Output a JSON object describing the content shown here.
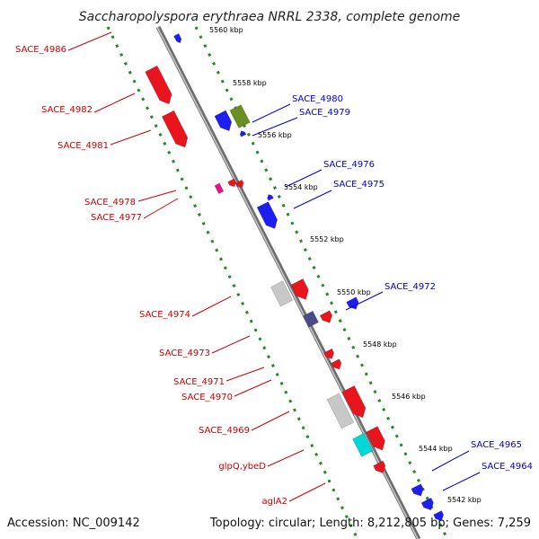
{
  "title": "Saccharopolyspora erythraea NRRL 2338, complete genome",
  "footer": {
    "accession": "Accession: NC_009142",
    "topology": "Topology: circular; Length: 8,212,805 bp; Genes: 7,259"
  },
  "colors": {
    "forward_label": "#0000cc",
    "reverse_label": "#cc0000",
    "backbone": "#888888",
    "dotted_track": "#228b22"
  },
  "kbp_ticks": [
    "5560 kbp",
    "5558 kbp",
    "5556 kbp",
    "5554 kbp",
    "5552 kbp",
    "5550 kbp",
    "5548 kbp",
    "5546 kbp",
    "5544 kbp",
    "5542 kbp"
  ],
  "gene_labels": [
    {
      "text": "SACE_4986",
      "strand": "reverse"
    },
    {
      "text": "SACE_4982",
      "strand": "reverse"
    },
    {
      "text": "SACE_4981",
      "strand": "reverse"
    },
    {
      "text": "SACE_4978",
      "strand": "reverse"
    },
    {
      "text": "SACE_4977",
      "strand": "reverse"
    },
    {
      "text": "SACE_4974",
      "strand": "reverse"
    },
    {
      "text": "SACE_4973",
      "strand": "reverse"
    },
    {
      "text": "SACE_4971",
      "strand": "reverse"
    },
    {
      "text": "SACE_4970",
      "strand": "reverse"
    },
    {
      "text": "SACE_4969",
      "strand": "reverse"
    },
    {
      "text": "glpQ,ybeD",
      "strand": "reverse"
    },
    {
      "text": "aglA2",
      "strand": "reverse"
    },
    {
      "text": "SACE_4980",
      "strand": "forward"
    },
    {
      "text": "SACE_4979",
      "strand": "forward"
    },
    {
      "text": "SACE_4976",
      "strand": "forward"
    },
    {
      "text": "SACE_4975",
      "strand": "forward"
    },
    {
      "text": "SACE_4972",
      "strand": "forward"
    },
    {
      "text": "SACE_4965",
      "strand": "forward"
    },
    {
      "text": "SACE_4964",
      "strand": "forward"
    }
  ]
}
